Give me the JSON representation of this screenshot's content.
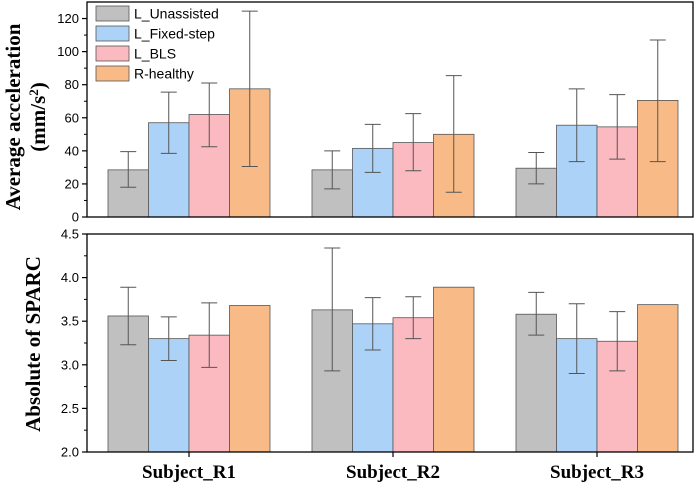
{
  "colors": {
    "L_Unassisted": "#c0c0c0",
    "L_Fixed-step": "#acd3f7",
    "L_BLS": "#fbbabf",
    "R-healthy": "#f8bb87",
    "axis": "#000000",
    "errorbar": "#555555"
  },
  "chart_data": [
    {
      "type": "bar",
      "categories": [
        "Subject_R1",
        "Subject_R2",
        "Subject_R3"
      ],
      "ylabel_line1": "Average acceleration",
      "ylabel_line2_base": "(mm/s",
      "ylabel_line2_sup": "2",
      "ylabel_line2_end": ")",
      "ylim": [
        0,
        130
      ],
      "yticks": [
        0,
        20,
        40,
        60,
        80,
        100,
        120
      ],
      "legend": [
        "L_Unassisted",
        "L_Fixed-step",
        "L_BLS",
        "R-healthy"
      ],
      "legend_position": "top-left",
      "series": [
        {
          "name": "L_Unassisted",
          "values": [
            28.5,
            28.5,
            29.5
          ],
          "err_low": [
            18,
            17,
            20
          ],
          "err_high": [
            39.5,
            40,
            39
          ]
        },
        {
          "name": "L_Fixed-step",
          "values": [
            57,
            41.5,
            55.5
          ],
          "err_low": [
            38.5,
            27,
            33.5
          ],
          "err_high": [
            75.5,
            56,
            77.5
          ]
        },
        {
          "name": "L_BLS",
          "values": [
            62,
            45,
            54.5
          ],
          "err_low": [
            42.5,
            28,
            35
          ],
          "err_high": [
            81,
            62.5,
            74
          ]
        },
        {
          "name": "R-healthy",
          "values": [
            77.5,
            50,
            70.5
          ],
          "err_low": [
            30.5,
            15,
            33.5
          ],
          "err_high": [
            124.5,
            85.5,
            107
          ]
        }
      ]
    },
    {
      "type": "bar",
      "categories": [
        "Subject_R1",
        "Subject_R2",
        "Subject_R3"
      ],
      "ylabel": "Absolute of  SPARC",
      "xlabel": "",
      "ylim": [
        2.0,
        4.5
      ],
      "yticks": [
        "2.0",
        "2.5",
        "3.0",
        "3.5",
        "4.0",
        "4.5"
      ],
      "series": [
        {
          "name": "L_Unassisted",
          "values": [
            3.56,
            3.63,
            3.58
          ],
          "err_low": [
            3.23,
            2.93,
            3.34
          ],
          "err_high": [
            3.89,
            4.34,
            3.83
          ]
        },
        {
          "name": "L_Fixed-step",
          "values": [
            3.3,
            3.47,
            3.3
          ],
          "err_low": [
            3.05,
            3.17,
            2.9
          ],
          "err_high": [
            3.55,
            3.77,
            3.7
          ]
        },
        {
          "name": "L_BLS",
          "values": [
            3.34,
            3.54,
            3.27
          ],
          "err_low": [
            2.97,
            3.3,
            2.93
          ],
          "err_high": [
            3.71,
            3.78,
            3.61
          ]
        },
        {
          "name": "R-healthy",
          "values": [
            3.68,
            3.89,
            3.69
          ],
          "err_low": [
            3.68,
            3.89,
            3.69
          ],
          "err_high": [
            3.68,
            3.89,
            3.69
          ]
        }
      ]
    }
  ]
}
